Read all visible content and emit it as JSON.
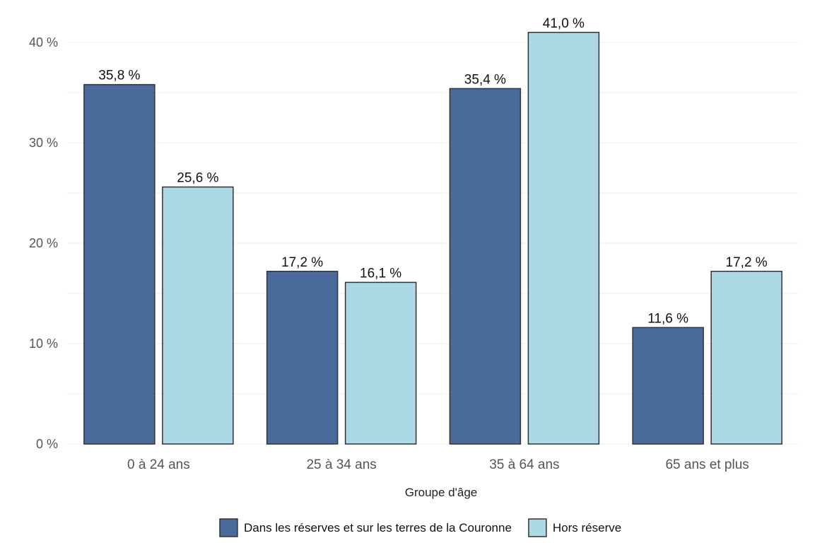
{
  "chart_data": {
    "type": "bar",
    "title": "",
    "xlabel": "Groupe d'âge",
    "ylabel": "",
    "categories": [
      "0 à 24 ans",
      "25 à 34 ans",
      "35 à 64 ans",
      "65 ans et plus"
    ],
    "series": [
      {
        "name": "Dans les réserves et sur les terres de la Couronne",
        "color": "#4a6a9c",
        "values": [
          35.8,
          17.2,
          35.4,
          11.6
        ],
        "labels": [
          "35,8 %",
          "17,2 %",
          "35,4 %",
          "11,6 %"
        ]
      },
      {
        "name": "Hors réserve",
        "color": "#add8e6",
        "values": [
          25.6,
          16.1,
          41.0,
          17.2
        ],
        "labels": [
          "25,6 %",
          "16,1 %",
          "41,0 %",
          "17,2 %"
        ]
      }
    ],
    "ylim": [
      0,
      40
    ],
    "yticks": [
      0,
      10,
      20,
      30,
      40
    ],
    "ytick_labels": [
      "0 %",
      "10 %",
      "20 %",
      "30 %",
      "40 %"
    ],
    "grid": true,
    "legend_position": "bottom"
  }
}
